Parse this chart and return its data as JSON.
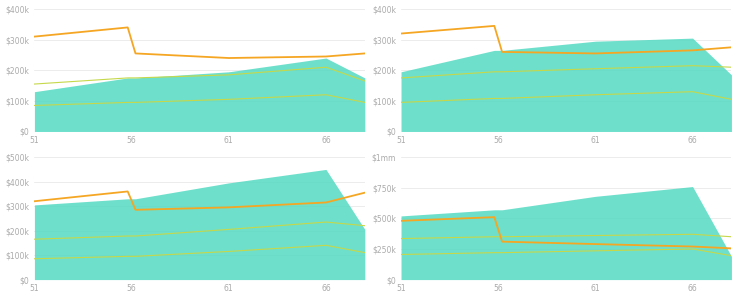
{
  "panels": [
    {
      "ylim": [
        0,
        400000
      ],
      "yticks": [
        0,
        100000,
        200000,
        300000,
        400000
      ],
      "ytick_labels": [
        "$0",
        "$100k",
        "$200k",
        "$300k",
        "$400k"
      ],
      "xtick_labels": [
        "51",
        "56",
        "61",
        "66"
      ],
      "x": [
        51,
        55.8,
        56.2,
        61,
        66,
        68
      ],
      "orange_line": [
        310000,
        340000,
        255000,
        240000,
        245000,
        255000
      ],
      "fill_top": [
        130000,
        175000,
        175000,
        195000,
        240000,
        175000
      ],
      "fill_bot": [
        0,
        0,
        0,
        0,
        0,
        0
      ],
      "yellow_line1": [
        155000,
        175000,
        175000,
        185000,
        210000,
        165000
      ],
      "yellow_line2": [
        85000,
        95000,
        95000,
        105000,
        120000,
        95000
      ]
    },
    {
      "ylim": [
        0,
        400000
      ],
      "yticks": [
        0,
        100000,
        200000,
        300000,
        400000
      ],
      "ytick_labels": [
        "$0",
        "$100k",
        "$200k",
        "$300k",
        "$400k"
      ],
      "xtick_labels": [
        "51",
        "56",
        "61",
        "66"
      ],
      "x": [
        51,
        55.8,
        56.2,
        61,
        66,
        68
      ],
      "orange_line": [
        320000,
        345000,
        260000,
        255000,
        265000,
        275000
      ],
      "fill_top": [
        195000,
        265000,
        265000,
        295000,
        305000,
        185000
      ],
      "fill_bot": [
        0,
        0,
        0,
        0,
        0,
        0
      ],
      "yellow_line1": [
        175000,
        195000,
        195000,
        205000,
        215000,
        210000
      ],
      "yellow_line2": [
        95000,
        108000,
        108000,
        120000,
        130000,
        105000
      ]
    },
    {
      "ylim": [
        0,
        500000
      ],
      "yticks": [
        0,
        100000,
        200000,
        300000,
        400000,
        500000
      ],
      "ytick_labels": [
        "$0",
        "$100k",
        "$200k",
        "$300k",
        "$400k",
        "$500k"
      ],
      "xtick_labels": [
        "51",
        "56",
        "61",
        "66"
      ],
      "x": [
        51,
        55.8,
        56.2,
        61,
        66,
        68
      ],
      "orange_line": [
        320000,
        360000,
        285000,
        295000,
        315000,
        355000
      ],
      "fill_top": [
        305000,
        330000,
        330000,
        395000,
        450000,
        205000
      ],
      "fill_bot": [
        0,
        0,
        0,
        0,
        0,
        0
      ],
      "yellow_line1": [
        165000,
        178000,
        178000,
        205000,
        235000,
        220000
      ],
      "yellow_line2": [
        85000,
        95000,
        95000,
        115000,
        140000,
        110000
      ]
    },
    {
      "ylim": [
        0,
        1000000
      ],
      "yticks": [
        0,
        250000,
        500000,
        750000,
        1000000
      ],
      "ytick_labels": [
        "$0",
        "$250k",
        "$500k",
        "$750k",
        "$1mm"
      ],
      "xtick_labels": [
        "51",
        "56",
        "61",
        "66"
      ],
      "x": [
        51,
        55.8,
        56.2,
        61,
        66,
        68
      ],
      "orange_line": [
        480000,
        510000,
        310000,
        290000,
        270000,
        255000
      ],
      "fill_top": [
        520000,
        570000,
        570000,
        680000,
        760000,
        190000
      ],
      "fill_bot": [
        0,
        0,
        0,
        0,
        0,
        0
      ],
      "yellow_line1": [
        335000,
        350000,
        350000,
        360000,
        370000,
        350000
      ],
      "yellow_line2": [
        205000,
        220000,
        220000,
        235000,
        250000,
        195000
      ]
    }
  ],
  "teal_color": "#4DD9C0",
  "orange_color": "#F5A623",
  "yellow_color": "#C6D84A",
  "grid_color": "#e5e5e5",
  "bg_color": "#ffffff",
  "tick_color": "#aaaaaa",
  "tick_fontsize": 5.5
}
